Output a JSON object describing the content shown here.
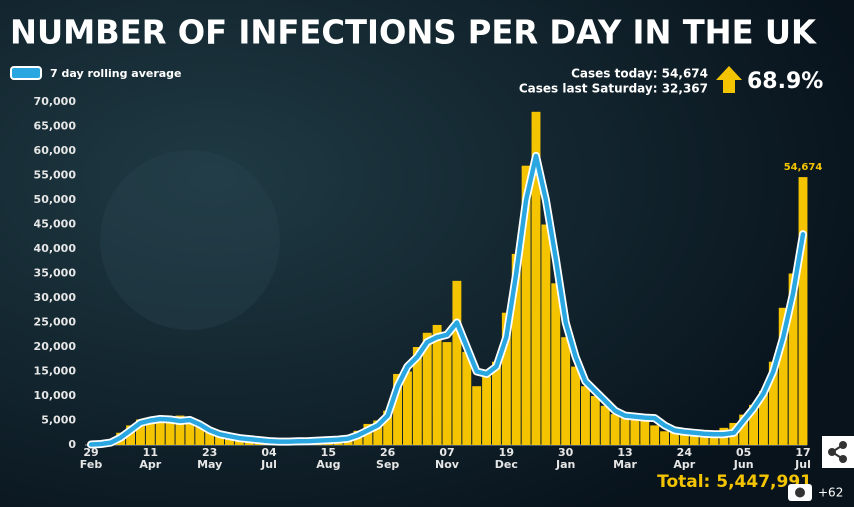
{
  "chart_data": {
    "type": "bar",
    "title": "NUMBER OF INFECTIONS PER DAY IN THE UK",
    "categories": [
      "29 Feb",
      null,
      null,
      null,
      null,
      null,
      "11 Apr",
      null,
      null,
      null,
      null,
      null,
      "23 May",
      null,
      null,
      null,
      null,
      null,
      "04 Jul",
      null,
      null,
      null,
      null,
      null,
      "15 Aug",
      null,
      null,
      null,
      null,
      null,
      "26 Sep",
      null,
      null,
      null,
      null,
      null,
      "07 Nov",
      null,
      null,
      null,
      null,
      null,
      "19 Dec",
      null,
      null,
      null,
      null,
      null,
      "30 Jan",
      null,
      null,
      null,
      null,
      null,
      "13 Mar",
      null,
      null,
      null,
      null,
      null,
      "24 Apr",
      null,
      null,
      null,
      null,
      null,
      "05 Jun",
      null,
      null,
      null,
      null,
      null,
      "17 Jul"
    ],
    "series": [
      {
        "color": "#f5c400",
        "values": [
          100,
          300,
          700,
          2500,
          4000,
          5200,
          5500,
          5800,
          4500,
          6000,
          4800,
          3800,
          2800,
          2100,
          1700,
          1300,
          1100,
          900,
          700,
          650,
          750,
          800,
          900,
          1000,
          1200,
          1200,
          1500,
          2900,
          4300,
          5000,
          7000,
          14500,
          15000,
          20000,
          22900,
          24500,
          21000,
          33500,
          19000,
          12000,
          14000,
          17000,
          27000,
          39000,
          57000,
          68000,
          45000,
          33000,
          22000,
          16000,
          12000,
          10000,
          8000,
          6300,
          5700,
          6000,
          5100,
          4000,
          2800,
          2600,
          2400,
          2200,
          2400,
          2500,
          3500,
          4500,
          6200,
          8200,
          11000,
          17000,
          28000,
          35000,
          54674
        ],
        "value_labels": [
          null,
          null,
          null,
          null,
          null,
          null,
          null,
          null,
          null,
          null,
          null,
          null,
          null,
          null,
          null,
          null,
          null,
          null,
          null,
          null,
          null,
          null,
          null,
          null,
          null,
          null,
          null,
          null,
          null,
          null,
          null,
          null,
          null,
          null,
          null,
          null,
          null,
          null,
          null,
          null,
          null,
          null,
          null,
          null,
          null,
          null,
          null,
          null,
          null,
          null,
          null,
          null,
          null,
          null,
          null,
          null,
          null,
          null,
          null,
          null,
          null,
          null,
          null,
          null,
          null,
          null,
          null,
          null,
          null,
          null,
          null,
          null,
          "54,674"
        ]
      },
      {
        "name": "7 day rolling average",
        "type": "line",
        "color": "#2aa7e0",
        "values": [
          100,
          200,
          500,
          1500,
          3000,
          4500,
          5000,
          5300,
          5200,
          4900,
          5100,
          4200,
          3000,
          2200,
          1800,
          1400,
          1200,
          1000,
          800,
          700,
          700,
          750,
          800,
          900,
          1000,
          1100,
          1300,
          2000,
          3000,
          4000,
          6000,
          12000,
          16000,
          18000,
          21000,
          22000,
          22500,
          25000,
          20000,
          15000,
          14500,
          16000,
          22000,
          35000,
          50000,
          59000,
          50000,
          38000,
          25000,
          18000,
          13000,
          11000,
          9000,
          7000,
          6000,
          5800,
          5600,
          5500,
          4000,
          3000,
          2700,
          2500,
          2300,
          2200,
          2200,
          2500,
          5000,
          7500,
          10500,
          15000,
          22000,
          31000,
          43000
        ]
      }
    ],
    "ylim": [
      0,
      70000
    ],
    "yticks": [
      0,
      {
        "value": 5000,
        "label": "5,000"
      },
      {
        "value": 10000,
        "label": "10,000"
      },
      {
        "value": 15000,
        "label": "15,000"
      },
      {
        "value": 20000,
        "label": "20,000"
      },
      {
        "value": 25000,
        "label": "25,000"
      },
      {
        "value": 30000,
        "label": "30,000"
      },
      {
        "value": 35000,
        "label": "35,000"
      },
      {
        "value": 40000,
        "label": "40,000"
      },
      {
        "value": 45000,
        "label": "45,000"
      },
      {
        "value": 50000,
        "label": "50,000"
      },
      {
        "value": 55000,
        "label": "55,000"
      },
      {
        "value": 60000,
        "label": "60,000"
      },
      {
        "value": 65000,
        "label": "65,000"
      },
      {
        "value": 70000,
        "label": "70,000"
      }
    ],
    "grid": false,
    "annotations": {
      "cases_today": "Cases today: 54,674",
      "cases_last_saturday": "Cases last Saturday: 32,367",
      "change": "68.9%",
      "total": "Total: 5,447,991",
      "share_count": "+62"
    }
  }
}
